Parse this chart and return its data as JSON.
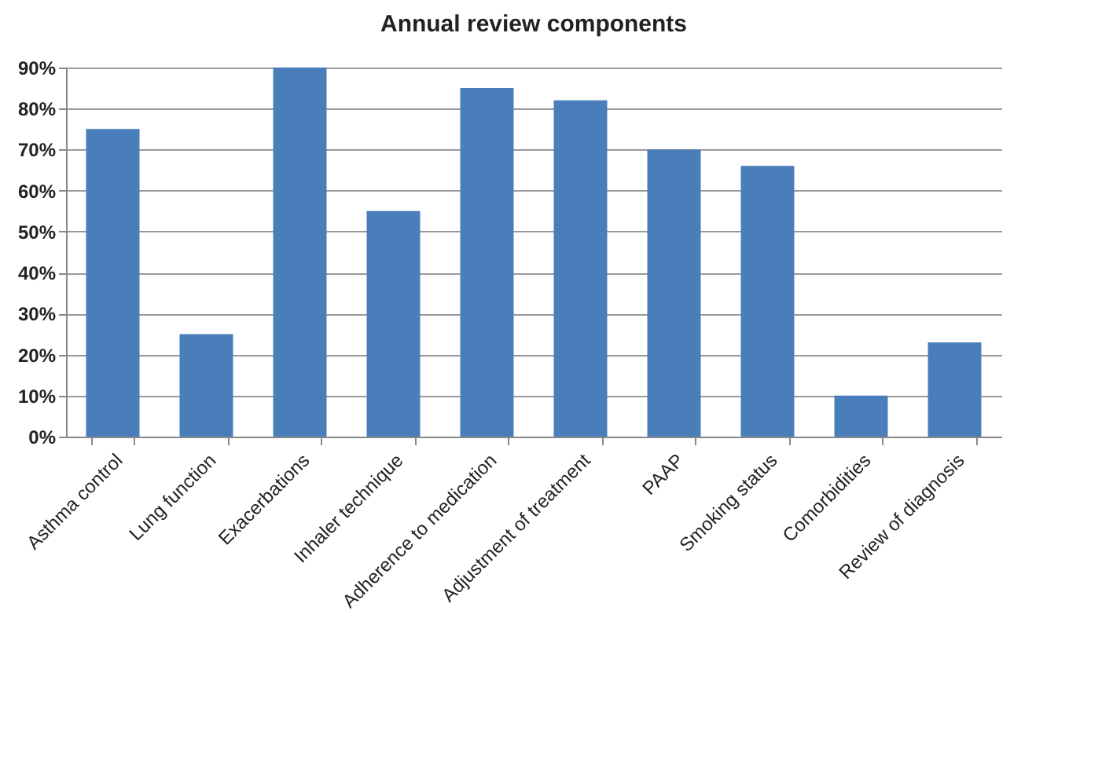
{
  "chart_data": {
    "type": "bar",
    "title": "Annual review components",
    "categories": [
      "Asthma control",
      "Lung function",
      "Exacerbations",
      "Inhaler technique",
      "Adherence to medication",
      "Adjustment of treatment",
      "PAAP",
      "Smoking status",
      "Comorbidities",
      "Review of diagnosis"
    ],
    "values": [
      75,
      25,
      90,
      55,
      85,
      82,
      70,
      66,
      10,
      23
    ],
    "color": "#4a7ebb",
    "ylim": [
      0,
      90
    ],
    "yticks": [
      {
        "value": 0,
        "label": "0%"
      },
      {
        "value": 10,
        "label": "10%"
      },
      {
        "value": 20,
        "label": "20%"
      },
      {
        "value": 30,
        "label": "30%"
      },
      {
        "value": 40,
        "label": "40%"
      },
      {
        "value": 50,
        "label": "50%"
      },
      {
        "value": 60,
        "label": "60%"
      },
      {
        "value": 70,
        "label": "70%"
      },
      {
        "value": 80,
        "label": "80%"
      },
      {
        "value": 90,
        "label": "90%"
      }
    ],
    "grid": "y"
  }
}
